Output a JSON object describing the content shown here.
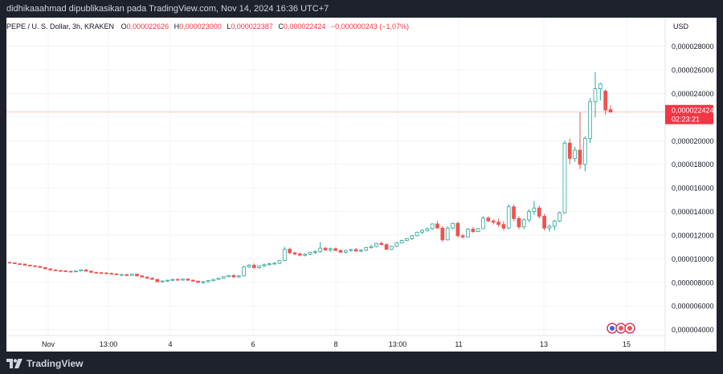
{
  "header": {
    "publisher_line": "didhikaaahmad dipublikasikan pada TradingView.com, Nov 14, 2024 16:36 UTC+7"
  },
  "legend": {
    "symbol": "PEPE / U. S. Dollar, 3h, KRAKEN",
    "o_label": "O",
    "o_value": "0,000022626",
    "h_label": "H",
    "h_value": "0,000023000",
    "l_label": "L",
    "l_value": "0,000022387",
    "c_label": "C",
    "c_value": "0,000022424",
    "change": "−0,000000243 (−1,07%)"
  },
  "price_scale": {
    "currency": "USD",
    "ticks": [
      "0,000028000",
      "0,000026000",
      "0,000024000",
      "0,000022000",
      "0,000020000",
      "0,000018000",
      "0,000016000",
      "0,000014000",
      "0,000012000",
      "0,000010000",
      "0,000008000",
      "0,000006000",
      "0,000004000"
    ],
    "last_price": "0,000022424",
    "countdown": "02:23:21"
  },
  "time_scale": {
    "labels": [
      "Nov",
      "13:00",
      "4",
      "6",
      "8",
      "13:00",
      "11",
      "13",
      "15"
    ]
  },
  "colors": {
    "up": "#26a69a",
    "down": "#ef5350",
    "last_price_tag": "#f23645"
  },
  "footer": {
    "brand": "TradingView"
  },
  "chart_data": {
    "type": "candlestick",
    "symbol": "PEPE / U. S. Dollar",
    "interval": "3h",
    "exchange": "KRAKEN",
    "ylim": [
      3.5e-06,
      2.92e-05
    ],
    "x_ticks": [
      "Nov",
      "13:00",
      "4",
      "6",
      "8",
      "13:00",
      "11",
      "13",
      "15"
    ],
    "candles": [
      [
        9.7,
        9.72,
        9.62,
        9.65
      ],
      [
        9.65,
        9.68,
        9.55,
        9.58
      ],
      [
        9.58,
        9.62,
        9.5,
        9.55
      ],
      [
        9.55,
        9.58,
        9.42,
        9.46
      ],
      [
        9.46,
        9.5,
        9.36,
        9.4
      ],
      [
        9.4,
        9.45,
        9.3,
        9.35
      ],
      [
        9.35,
        9.38,
        9.22,
        9.26
      ],
      [
        9.26,
        9.3,
        9.1,
        9.15
      ],
      [
        9.15,
        9.18,
        9.02,
        9.05
      ],
      [
        9.05,
        9.1,
        8.95,
        9.0
      ],
      [
        9.0,
        9.05,
        8.92,
        8.98
      ],
      [
        8.98,
        9.02,
        8.9,
        8.94
      ],
      [
        8.94,
        8.98,
        8.85,
        8.9
      ],
      [
        8.9,
        9.0,
        8.86,
        8.96
      ],
      [
        8.96,
        9.1,
        8.92,
        9.05
      ],
      [
        9.05,
        9.15,
        8.9,
        8.95
      ],
      [
        8.95,
        9.0,
        8.82,
        8.85
      ],
      [
        8.85,
        8.9,
        8.78,
        8.82
      ],
      [
        8.82,
        8.88,
        8.75,
        8.8
      ],
      [
        8.8,
        8.86,
        8.72,
        8.76
      ],
      [
        8.76,
        8.82,
        8.68,
        8.72
      ],
      [
        8.72,
        8.78,
        8.62,
        8.65
      ],
      [
        8.65,
        8.72,
        8.6,
        8.66
      ],
      [
        8.66,
        8.72,
        8.55,
        8.58
      ],
      [
        8.58,
        8.75,
        8.55,
        8.7
      ],
      [
        8.7,
        8.72,
        8.5,
        8.55
      ],
      [
        8.55,
        8.6,
        8.4,
        8.45
      ],
      [
        8.45,
        8.5,
        8.3,
        8.35
      ],
      [
        8.35,
        8.42,
        8.22,
        8.25
      ],
      [
        8.25,
        8.3,
        8.02,
        8.05
      ],
      [
        8.05,
        8.15,
        7.98,
        8.12
      ],
      [
        8.12,
        8.22,
        8.05,
        8.18
      ],
      [
        8.18,
        8.3,
        8.1,
        8.25
      ],
      [
        8.25,
        8.32,
        8.15,
        8.2
      ],
      [
        8.2,
        8.3,
        8.12,
        8.28
      ],
      [
        8.28,
        8.34,
        8.14,
        8.18
      ],
      [
        8.18,
        8.25,
        8.05,
        8.1
      ],
      [
        8.1,
        8.15,
        7.95,
        8.0
      ],
      [
        8.0,
        8.1,
        7.9,
        8.05
      ],
      [
        8.05,
        8.2,
        8.0,
        8.15
      ],
      [
        8.15,
        8.3,
        8.1,
        8.25
      ],
      [
        8.25,
        8.4,
        8.2,
        8.35
      ],
      [
        8.35,
        8.52,
        8.3,
        8.48
      ],
      [
        8.48,
        8.62,
        8.42,
        8.58
      ],
      [
        8.58,
        8.66,
        8.4,
        8.46
      ],
      [
        8.46,
        8.6,
        8.4,
        8.55
      ],
      [
        8.55,
        9.4,
        8.5,
        9.3
      ],
      [
        9.3,
        9.55,
        9.2,
        9.45
      ],
      [
        9.45,
        9.6,
        9.15,
        9.25
      ],
      [
        9.25,
        9.45,
        9.15,
        9.4
      ],
      [
        9.4,
        9.6,
        9.3,
        9.5
      ],
      [
        9.5,
        9.65,
        9.4,
        9.58
      ],
      [
        9.58,
        9.7,
        9.5,
        9.62
      ],
      [
        9.62,
        9.9,
        9.55,
        9.85
      ],
      [
        9.85,
        11.0,
        9.8,
        10.8
      ],
      [
        10.8,
        10.95,
        10.4,
        10.5
      ],
      [
        10.5,
        10.6,
        10.3,
        10.4
      ],
      [
        10.4,
        10.55,
        10.2,
        10.3
      ],
      [
        10.3,
        10.45,
        10.2,
        10.38
      ],
      [
        10.38,
        10.6,
        10.3,
        10.55
      ],
      [
        10.55,
        10.7,
        10.4,
        10.6
      ],
      [
        10.6,
        11.4,
        10.5,
        10.9
      ],
      [
        10.9,
        11.0,
        10.65,
        10.75
      ],
      [
        10.75,
        10.95,
        10.6,
        10.85
      ],
      [
        10.85,
        10.95,
        10.65,
        10.7
      ],
      [
        10.7,
        10.8,
        10.5,
        10.55
      ],
      [
        10.55,
        10.75,
        10.45,
        10.7
      ],
      [
        10.7,
        10.85,
        10.6,
        10.78
      ],
      [
        10.78,
        10.92,
        10.62,
        10.65
      ],
      [
        10.65,
        10.8,
        10.55,
        10.72
      ],
      [
        10.72,
        11.0,
        10.65,
        10.95
      ],
      [
        10.95,
        11.15,
        10.85,
        11.05
      ],
      [
        11.05,
        11.35,
        10.95,
        11.3
      ],
      [
        11.3,
        11.45,
        11.15,
        11.2
      ],
      [
        11.2,
        11.3,
        10.75,
        10.8
      ],
      [
        10.8,
        11.1,
        10.75,
        11.05
      ],
      [
        11.05,
        11.4,
        11.0,
        11.35
      ],
      [
        11.35,
        11.6,
        11.3,
        11.55
      ],
      [
        11.55,
        11.75,
        11.5,
        11.7
      ],
      [
        11.7,
        12.0,
        11.6,
        11.95
      ],
      [
        11.95,
        12.3,
        11.9,
        12.25
      ],
      [
        12.25,
        12.5,
        12.1,
        12.4
      ],
      [
        12.4,
        12.65,
        12.3,
        12.55
      ],
      [
        12.55,
        13.0,
        12.45,
        12.95
      ],
      [
        12.95,
        13.2,
        12.55,
        12.6
      ],
      [
        12.6,
        12.75,
        11.45,
        11.6
      ],
      [
        11.6,
        12.75,
        11.55,
        12.6
      ],
      [
        12.6,
        13.05,
        12.5,
        13.0
      ],
      [
        13.0,
        13.15,
        11.8,
        11.95
      ],
      [
        11.95,
        12.1,
        11.7,
        11.85
      ],
      [
        11.85,
        12.6,
        11.8,
        12.5
      ],
      [
        12.5,
        12.7,
        12.2,
        12.3
      ],
      [
        12.3,
        12.6,
        12.25,
        12.55
      ],
      [
        12.55,
        13.6,
        12.5,
        13.45
      ],
      [
        13.45,
        13.6,
        13.1,
        13.2
      ],
      [
        13.2,
        13.35,
        12.9,
        13.1
      ],
      [
        13.1,
        13.4,
        12.7,
        12.9
      ],
      [
        12.9,
        13.2,
        12.4,
        12.6
      ],
      [
        12.6,
        14.6,
        12.5,
        14.4
      ],
      [
        14.4,
        14.6,
        13.2,
        13.4
      ],
      [
        13.4,
        13.6,
        12.5,
        12.7
      ],
      [
        12.7,
        13.4,
        12.5,
        13.3
      ],
      [
        13.3,
        14.2,
        13.1,
        14.0
      ],
      [
        14.0,
        14.9,
        13.7,
        14.3
      ],
      [
        14.3,
        14.5,
        13.4,
        13.6
      ],
      [
        13.6,
        13.8,
        12.4,
        12.6
      ],
      [
        12.6,
        12.9,
        12.3,
        12.75
      ],
      [
        12.75,
        13.3,
        12.4,
        13.2
      ],
      [
        13.2,
        14.0,
        13.1,
        13.9
      ],
      [
        13.9,
        20.0,
        13.8,
        19.8
      ],
      [
        19.8,
        20.2,
        18.0,
        18.5
      ],
      [
        18.5,
        19.5,
        18.2,
        19.2
      ],
      [
        19.2,
        22.4,
        17.6,
        18.0
      ],
      [
        18.0,
        20.4,
        17.4,
        20.2
      ],
      [
        20.2,
        23.6,
        19.8,
        23.3
      ],
      [
        23.3,
        25.8,
        22.0,
        24.4
      ],
      [
        24.4,
        24.9,
        23.4,
        24.8
      ],
      [
        24.2,
        24.35,
        22.2,
        22.6
      ],
      [
        22.63,
        23.0,
        22.39,
        22.42
      ]
    ]
  }
}
